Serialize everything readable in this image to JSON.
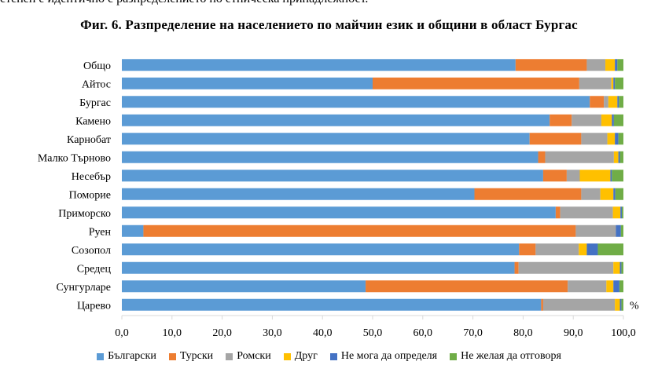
{
  "header": {
    "top_text": "степен е идентично с разпределението по етническа принадлежност.",
    "title": "Фиг. 6. Разпределение на населението по майчин език и общини в област Бургас"
  },
  "chart_data": {
    "type": "bar",
    "orientation": "horizontal",
    "stacked": true,
    "title": "Фиг. 6. Разпределение на населението по майчин език и общини в област Бургас",
    "categories": [
      "Общо",
      "Айтос",
      "Бургас",
      "Камено",
      "Карнобат",
      "Малко Търново",
      "Несебър",
      "Поморие",
      "Приморско",
      "Руен",
      "Созопол",
      "Средец",
      "Сунгурларе",
      "Царево"
    ],
    "series": [
      {
        "name": "Български",
        "color": "#5B9BD5",
        "values": [
          78.5,
          50.0,
          93.3,
          85.3,
          81.3,
          83.0,
          84.0,
          70.3,
          86.5,
          4.3,
          79.2,
          78.3,
          48.6,
          83.6
        ]
      },
      {
        "name": "Турски",
        "color": "#ED7D31",
        "values": [
          14.2,
          41.2,
          2.8,
          4.4,
          10.3,
          1.4,
          4.7,
          21.3,
          0.9,
          86.2,
          3.3,
          0.8,
          40.3,
          0.4
        ]
      },
      {
        "name": "Ромски",
        "color": "#A5A5A5",
        "values": [
          3.7,
          6.4,
          0.9,
          5.9,
          5.2,
          13.7,
          2.6,
          3.8,
          10.5,
          8.0,
          8.6,
          18.9,
          7.7,
          14.3
        ]
      },
      {
        "name": "Друг",
        "color": "#FFC000",
        "values": [
          1.9,
          0.4,
          1.8,
          2.1,
          1.5,
          0.9,
          6.1,
          2.6,
          1.5,
          0.0,
          1.6,
          1.3,
          1.4,
          1.0
        ]
      },
      {
        "name": "Не мога да определя",
        "color": "#4472C4",
        "values": [
          0.5,
          0.3,
          0.3,
          0.4,
          0.7,
          0.3,
          0.3,
          0.4,
          0.3,
          1.0,
          2.2,
          0.3,
          1.2,
          0.3
        ]
      },
      {
        "name": "Не желая да отговоря",
        "color": "#70AD47",
        "values": [
          1.2,
          1.7,
          0.9,
          1.9,
          1.0,
          0.7,
          2.3,
          1.6,
          0.3,
          0.5,
          5.1,
          0.4,
          0.8,
          0.4
        ]
      }
    ],
    "x_ticks": [
      "0,0",
      "10,0",
      "20,0",
      "30,0",
      "40,0",
      "50,0",
      "60,0",
      "70,0",
      "80,0",
      "90,0",
      "100,0"
    ],
    "xlim": [
      0,
      100
    ],
    "x_unit": "%",
    "legend_position": "bottom",
    "grid": false
  }
}
